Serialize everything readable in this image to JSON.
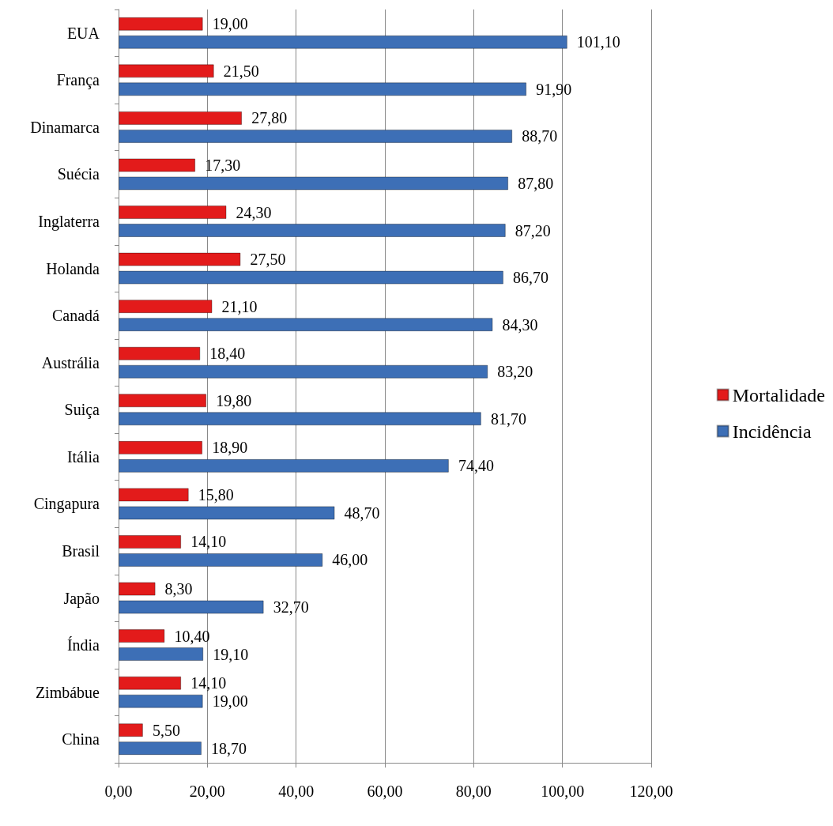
{
  "chart_data": {
    "type": "bar",
    "orientation": "horizontal",
    "categories": [
      "EUA",
      "França",
      "Dinamarca",
      "Suécia",
      "Inglaterra",
      "Holanda",
      "Canadá",
      "Austrália",
      "Suiça",
      "Itália",
      "Cingapura",
      "Brasil",
      "Japão",
      "Índia",
      "Zimbábue",
      "China"
    ],
    "series": [
      {
        "name": "Mortalidade",
        "color": "#e31b1b",
        "values": [
          19.0,
          21.5,
          27.8,
          17.3,
          24.3,
          27.5,
          21.1,
          18.4,
          19.8,
          18.9,
          15.8,
          14.1,
          8.3,
          10.4,
          14.1,
          5.5
        ],
        "value_labels": [
          "19,00",
          "21,50",
          "27,80",
          "17,30",
          "24,30",
          "27,50",
          "21,10",
          "18,40",
          "19,80",
          "18,90",
          "15,80",
          "14,10",
          "8,30",
          "10,40",
          "14,10",
          "5,50"
        ]
      },
      {
        "name": "Incidência",
        "color": "#3d6fb6",
        "values": [
          101.1,
          91.9,
          88.7,
          87.8,
          87.2,
          86.7,
          84.3,
          83.2,
          81.7,
          74.4,
          48.7,
          46.0,
          32.7,
          19.1,
          19.0,
          18.7
        ],
        "value_labels": [
          "101,10",
          "91,90",
          "88,70",
          "87,80",
          "87,20",
          "86,70",
          "84,30",
          "83,20",
          "81,70",
          "74,40",
          "48,70",
          "46,00",
          "32,70",
          "19,10",
          "19,00",
          "18,70"
        ]
      }
    ],
    "xlim": [
      0,
      120
    ],
    "xticks": [
      {
        "value": 0,
        "label": "0,00"
      },
      {
        "value": 20,
        "label": "20,00"
      },
      {
        "value": 40,
        "label": "40,00"
      },
      {
        "value": 60,
        "label": "60,00"
      },
      {
        "value": 80,
        "label": "80,00"
      },
      {
        "value": 100,
        "label": "100,00"
      },
      {
        "value": 120,
        "label": "120,00"
      }
    ],
    "grid": "x",
    "legend": "right"
  }
}
